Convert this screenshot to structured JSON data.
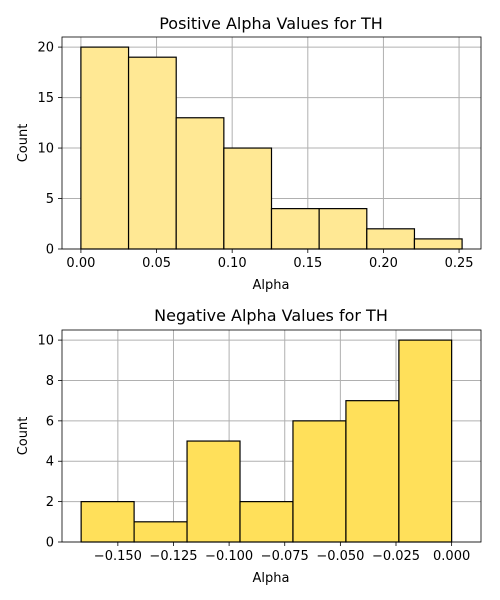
{
  "chart_data": [
    {
      "type": "bar",
      "title": "Positive Alpha Values for TH",
      "xlabel": "Alpha",
      "ylabel": "Count",
      "xlim": [
        -0.0125,
        0.2645
      ],
      "ylim": [
        0,
        21
      ],
      "xticks": [
        0.0,
        0.05,
        0.1,
        0.15,
        0.2,
        0.25
      ],
      "xtick_labels": [
        "0.00",
        "0.05",
        "0.10",
        "0.15",
        "0.20",
        "0.25"
      ],
      "yticks": [
        0,
        5,
        10,
        15,
        20
      ],
      "ytick_labels": [
        "0",
        "5",
        "10",
        "15",
        "20"
      ],
      "bin_edges": [
        0.0,
        0.0315,
        0.063,
        0.0945,
        0.126,
        0.1575,
        0.189,
        0.2205,
        0.252
      ],
      "values": [
        20,
        19,
        13,
        10,
        4,
        4,
        2,
        1
      ],
      "bar_color": "#FFE894",
      "edge_color": "#000000",
      "grid": true
    },
    {
      "type": "bar",
      "title": "Negative Alpha Values for TH",
      "xlabel": "Alpha",
      "ylabel": "Count",
      "xlim": [
        -0.1751,
        0.0132
      ],
      "ylim": [
        0,
        10.5
      ],
      "xticks": [
        -0.15,
        -0.125,
        -0.1,
        -0.075,
        -0.05,
        -0.025,
        0.0
      ],
      "xtick_labels": [
        "−0.150",
        "−0.125",
        "−0.100",
        "−0.075",
        "−0.050",
        "−0.025",
        "0.000"
      ],
      "yticks": [
        0,
        2,
        4,
        6,
        8,
        10
      ],
      "ytick_labels": [
        "0",
        "2",
        "4",
        "6",
        "8",
        "10"
      ],
      "bin_edges": [
        -0.1665,
        -0.1427,
        -0.1189,
        -0.0951,
        -0.0713,
        -0.0475,
        -0.0237,
        0.0
      ],
      "values": [
        2,
        1,
        5,
        2,
        6,
        7,
        10
      ],
      "bar_color": "#FFE05A",
      "edge_color": "#000000",
      "grid": true
    }
  ]
}
